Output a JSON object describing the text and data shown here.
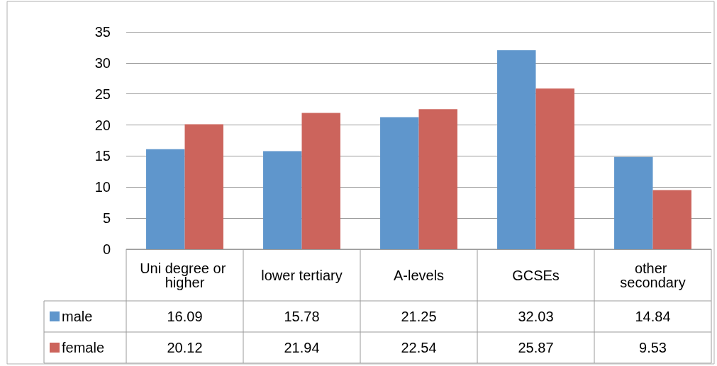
{
  "chart_data": {
    "type": "bar",
    "categories": [
      "Uni degree or higher",
      "lower tertiary",
      "A-levels",
      "GCSEs",
      "other secondary"
    ],
    "series": [
      {
        "name": "male",
        "color": "#5f96cc",
        "values": [
          16.09,
          15.78,
          21.25,
          32.03,
          14.84
        ]
      },
      {
        "name": "female",
        "color": "#cc645c",
        "values": [
          20.12,
          21.94,
          22.54,
          25.87,
          9.53
        ]
      }
    ],
    "ylim": [
      0,
      35
    ],
    "yticks": [
      0,
      5,
      10,
      15,
      20,
      25,
      30,
      35
    ],
    "grid": "y",
    "legend": "bottom left",
    "data_labels": true
  }
}
